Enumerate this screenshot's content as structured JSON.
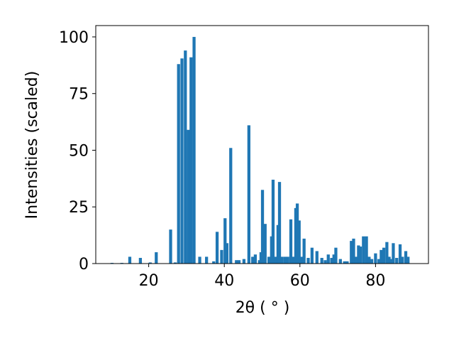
{
  "chart_data": {
    "type": "bar",
    "xlabel": "2θ ( ° )",
    "ylabel": "Intensities (scaled)",
    "x": [
      10.3,
      12.9,
      15,
      17.8,
      20.4,
      22,
      25.8,
      27,
      27.9,
      28.8,
      29.7,
      30.5,
      31.2,
      32,
      33.5,
      35.3,
      37.2,
      38.1,
      39.3,
      40.2,
      40.7,
      41.7,
      43.2,
      43.9,
      45.2,
      46.5,
      47.5,
      48.2,
      49.3,
      49.7,
      50.1,
      50.8,
      51.8,
      52.5,
      52.9,
      53.6,
      54.2,
      54.6,
      55.3,
      56.1,
      56.8,
      57.6,
      58.3,
      58.9,
      59.3,
      59.8,
      60.4,
      61.1,
      62.2,
      63.2,
      64.5,
      65.8,
      66.7,
      67.5,
      68.4,
      69,
      69.5,
      70.7,
      71.8,
      72.5,
      73.6,
      74.2,
      74.8,
      75.5,
      76,
      76.8,
      77.6,
      78.3,
      79,
      80,
      80.9,
      81.5,
      82.2,
      83,
      83.6,
      84.1,
      84.7,
      85.6,
      86.5,
      87.1,
      88,
      88.6
    ],
    "values": [
      0.3,
      0.3,
      3,
      2.5,
      0.5,
      5,
      15,
      0.5,
      88,
      90.5,
      94,
      59,
      91,
      100,
      3,
      3,
      1,
      14,
      6,
      20,
      9,
      51,
      1.5,
      1.5,
      2,
      61,
      3,
      4,
      1.5,
      5,
      32.5,
      17.5,
      3,
      12,
      37,
      3,
      17,
      36,
      3,
      3,
      3,
      19.5,
      3,
      24.5,
      26.5,
      19,
      3,
      11,
      2.5,
      7,
      5.5,
      2.5,
      1.5,
      4,
      2.5,
      4,
      7,
      2,
      1,
      1,
      10,
      11,
      3,
      8,
      7.5,
      12,
      12,
      3,
      2,
      4.5,
      2,
      6,
      7,
      9.5,
      3,
      2,
      9,
      2.5,
      8.5,
      3,
      5.5,
      3
    ],
    "width": 0.8,
    "color": "#1f77b4",
    "xlim": [
      6,
      94
    ],
    "xticks": [
      20,
      40,
      60,
      80
    ],
    "ylim": [
      0,
      105
    ],
    "yticks": [
      0,
      25,
      50,
      75,
      100
    ]
  }
}
